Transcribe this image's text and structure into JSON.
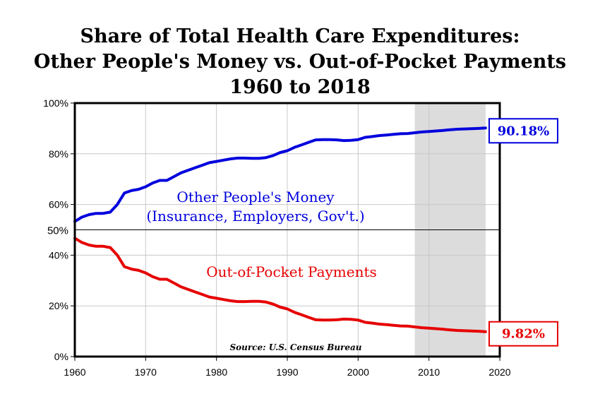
{
  "title": {
    "line1": "Share of Total Health Care Expenditures:",
    "line2": "Other People's Money vs. Out-of-Pocket Payments",
    "line3": "1960 to 2018"
  },
  "colors": {
    "opm": "#0000dd",
    "oop": "#e60000",
    "shade": "#dcdcdc"
  },
  "chart_data": {
    "type": "line",
    "title": "Share of Total Health Care Expenditures: Other People's Money vs. Out-of-Pocket Payments 1960 to 2018",
    "xlim": [
      1960,
      2020
    ],
    "ylim": [
      0,
      100
    ],
    "x_ticks": [
      "1960",
      "1970",
      "1980",
      "1990",
      "2000",
      "2010",
      "2020"
    ],
    "y_ticks": [
      "0%",
      "20%",
      "40%",
      "60%",
      "80%",
      "100%"
    ],
    "reference_line": {
      "value": 50,
      "label": "50%"
    },
    "shaded_region": [
      2008,
      2018
    ],
    "grid": true,
    "x": [
      1960,
      1961,
      1962,
      1963,
      1964,
      1965,
      1966,
      1967,
      1968,
      1969,
      1970,
      1971,
      1972,
      1973,
      1974,
      1975,
      1976,
      1977,
      1978,
      1979,
      1980,
      1981,
      1982,
      1983,
      1984,
      1985,
      1986,
      1987,
      1988,
      1989,
      1990,
      1991,
      1992,
      1993,
      1994,
      1995,
      1996,
      1997,
      1998,
      1999,
      2000,
      2001,
      2002,
      2003,
      2004,
      2005,
      2006,
      2007,
      2008,
      2009,
      2010,
      2011,
      2012,
      2013,
      2014,
      2015,
      2016,
      2017,
      2018
    ],
    "series": [
      {
        "name": "Other People's Money (Insurance, Employers, Gov't.)",
        "color": "#0000dd",
        "end_label": "90.18%",
        "values": [
          53.3,
          55.0,
          56.0,
          56.5,
          56.5,
          57.0,
          60.0,
          64.5,
          65.5,
          66.0,
          67.0,
          68.5,
          69.5,
          69.5,
          71.0,
          72.5,
          73.5,
          74.5,
          75.5,
          76.5,
          77.0,
          77.5,
          78.0,
          78.3,
          78.3,
          78.2,
          78.2,
          78.5,
          79.3,
          80.5,
          81.2,
          82.5,
          83.5,
          84.5,
          85.5,
          85.6,
          85.6,
          85.5,
          85.2,
          85.3,
          85.6,
          86.5,
          86.8,
          87.2,
          87.4,
          87.7,
          87.9,
          88.0,
          88.3,
          88.6,
          88.8,
          89.0,
          89.2,
          89.5,
          89.7,
          89.8,
          89.9,
          90.0,
          90.18
        ]
      },
      {
        "name": "Out-of-Pocket Payments",
        "color": "#e60000",
        "end_label": "9.82%",
        "values": [
          46.7,
          45.0,
          44.0,
          43.5,
          43.5,
          43.0,
          40.0,
          35.5,
          34.5,
          34.0,
          33.0,
          31.5,
          30.5,
          30.5,
          29.0,
          27.5,
          26.5,
          25.5,
          24.5,
          23.5,
          23.0,
          22.5,
          22.0,
          21.7,
          21.7,
          21.8,
          21.8,
          21.5,
          20.7,
          19.5,
          18.8,
          17.5,
          16.5,
          15.5,
          14.5,
          14.4,
          14.4,
          14.5,
          14.8,
          14.7,
          14.4,
          13.5,
          13.2,
          12.8,
          12.6,
          12.3,
          12.1,
          12.0,
          11.7,
          11.4,
          11.2,
          11.0,
          10.8,
          10.5,
          10.3,
          10.2,
          10.1,
          10.0,
          9.82
        ]
      }
    ]
  },
  "annotations": {
    "opm_line1": "Other People's Money",
    "opm_line2": "(Insurance, Employers, Gov't.)",
    "oop": "Out-of-Pocket Payments",
    "source": "Source: U.S. Census Bureau"
  }
}
